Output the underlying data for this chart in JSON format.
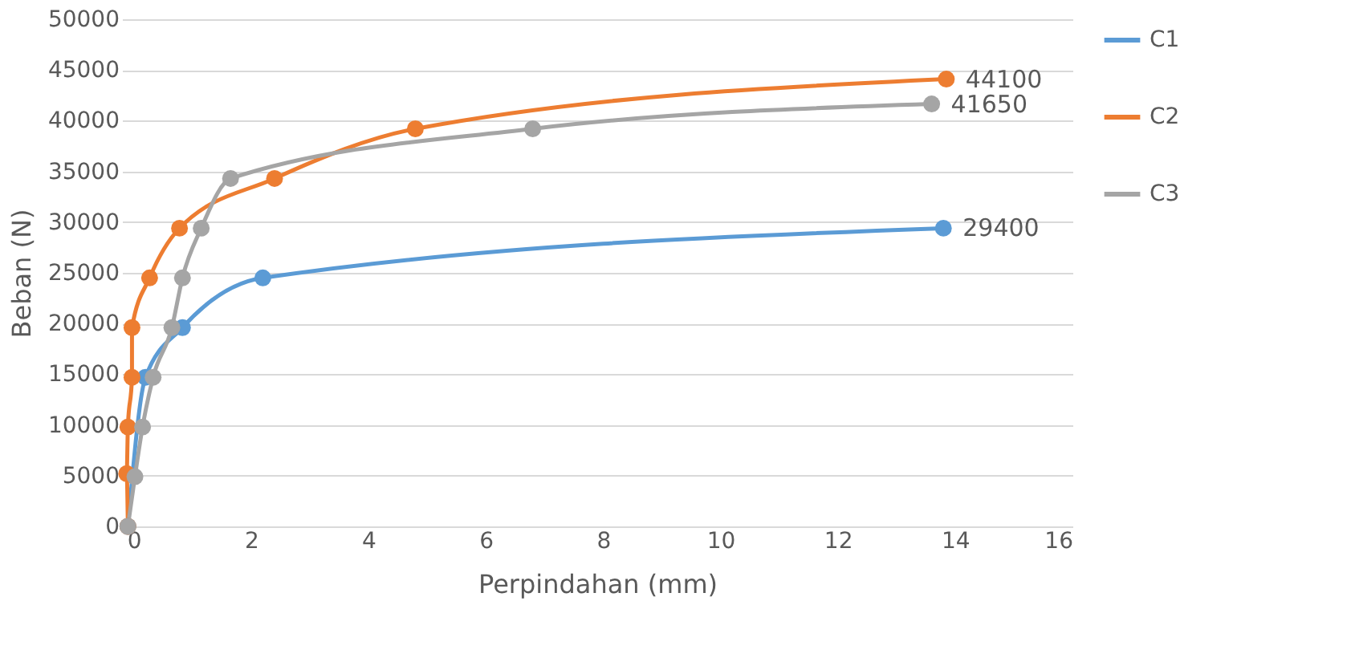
{
  "chart_data": {
    "type": "line",
    "xlabel": "Perpindahan (mm)",
    "ylabel": "Beban (N)",
    "xlim": [
      -0.2,
      16
    ],
    "xticks": [
      0,
      2,
      4,
      6,
      8,
      10,
      12,
      14,
      16
    ],
    "ylim": [
      0,
      50000
    ],
    "yticks": [
      0,
      5000,
      10000,
      15000,
      20000,
      25000,
      30000,
      35000,
      40000,
      45000,
      50000
    ],
    "grid": "y",
    "legend": "right",
    "marker": "circle",
    "line_style": "solid",
    "series": [
      {
        "name": "C1",
        "color": "#5b9bd5",
        "x": [
          -0.1,
          0.2,
          0.83,
          2.2,
          13.8
        ],
        "values": [
          0,
          14700,
          19600,
          24500,
          29400
        ]
      },
      {
        "name": "C2",
        "color": "#ed7d31",
        "x": [
          -0.1,
          -0.12,
          -0.1,
          -0.03,
          -0.03,
          0.27,
          0.78,
          2.4,
          4.8,
          13.85
        ],
        "values": [
          0,
          5200,
          9800,
          14700,
          19600,
          24500,
          29400,
          34300,
          39200,
          44100
        ]
      },
      {
        "name": "C3",
        "color": "#a5a5a5",
        "x": [
          -0.1,
          0.02,
          0.15,
          0.33,
          0.65,
          0.83,
          1.15,
          1.65,
          6.8,
          13.6
        ],
        "values": [
          0,
          4900,
          9800,
          14700,
          19600,
          24500,
          29400,
          34300,
          39200,
          41650
        ]
      }
    ],
    "annotations": [
      {
        "text": "29400",
        "x": 13.8,
        "y": 29400
      },
      {
        "text": "44100",
        "x": 13.85,
        "y": 44100
      },
      {
        "text": "41650",
        "x": 13.6,
        "y": 41650
      }
    ]
  }
}
